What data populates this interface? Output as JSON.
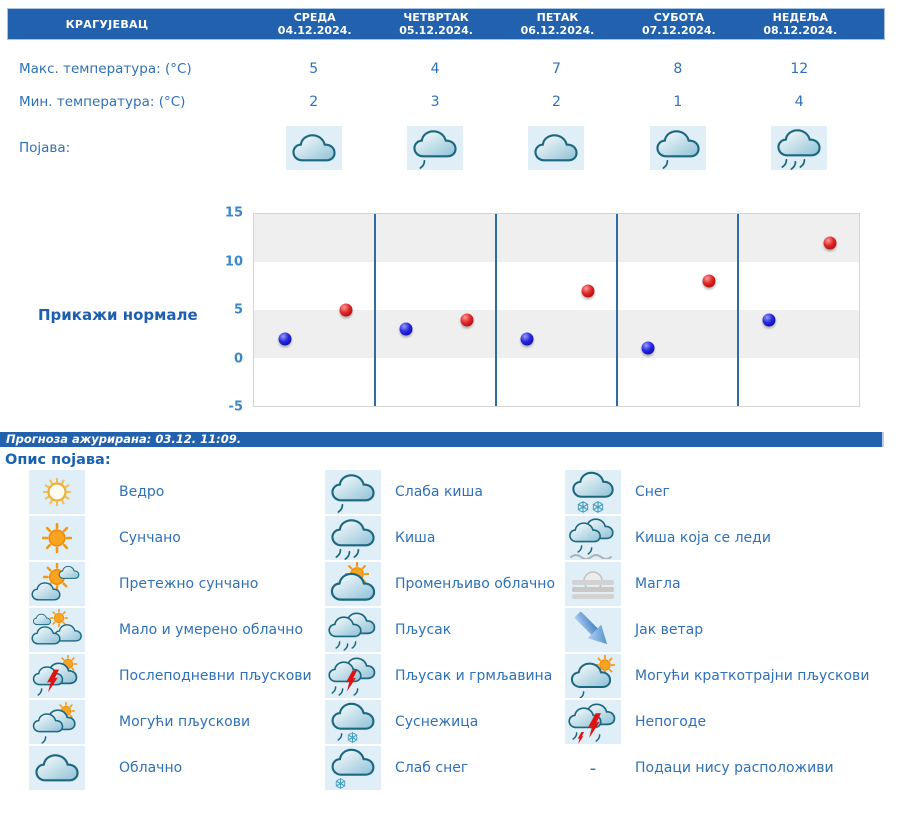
{
  "colors": {
    "header_bg": "#2161ad",
    "text_blue": "#2f71b8",
    "accent_blue": "#1a62ae",
    "cell_bg": "#e0eef8",
    "day_separator": "#2e6da4"
  },
  "header": {
    "city": "КРАГУЈЕВАЦ",
    "days": [
      {
        "name": "СРЕДА",
        "date": "04.12.2024."
      },
      {
        "name": "ЧЕТВРТАК",
        "date": "05.12.2024."
      },
      {
        "name": "ПЕТАК",
        "date": "06.12.2024."
      },
      {
        "name": "СУБОТА",
        "date": "07.12.2024."
      },
      {
        "name": "НЕДЕЉА",
        "date": "08.12.2024."
      }
    ]
  },
  "table": {
    "max_label": "Макс. температура: (°C)",
    "max_values": [
      "5",
      "4",
      "7",
      "8",
      "12"
    ],
    "min_label": "Мин. температура: (°C)",
    "min_values": [
      "2",
      "3",
      "2",
      "1",
      "4"
    ],
    "pojava_label": "Појава:",
    "pojava_icons": [
      "cloud-icon",
      "cloud-light-rain-icon",
      "cloud-icon",
      "cloud-light-rain-icon",
      "cloud-rain-icon"
    ]
  },
  "chart": {
    "show_normals_label": "Прикажи нормале"
  },
  "chart_data": {
    "type": "scatter",
    "categories": [
      "СРЕДА 04.12.2024.",
      "ЧЕТВРТАК 05.12.2024.",
      "ПЕТАК 06.12.2024.",
      "СУБОТА 07.12.2024.",
      "НЕДЕЉА 08.12.2024."
    ],
    "series": [
      {
        "name": "Мин. температура (°C)",
        "color": "#1414cc",
        "values": [
          2,
          3,
          2,
          1,
          4
        ]
      },
      {
        "name": "Макс. температура (°C)",
        "color": "#cc1212",
        "values": [
          5,
          4,
          7,
          8,
          12
        ]
      }
    ],
    "ylim": [
      -5,
      15
    ],
    "yticks": [
      15,
      10,
      5,
      0,
      -5
    ],
    "grid": "horizontal-bands-alternating",
    "legend_position": "none",
    "title": "",
    "xlabel": "",
    "ylabel": ""
  },
  "update_bar": {
    "text": "Прогноза ажурирана:  03.12. 11:09."
  },
  "legend": {
    "title": "Опис појава:",
    "columns": [
      [
        {
          "icon": "sun-outline-icon",
          "label": "Ведро"
        },
        {
          "icon": "sun-icon",
          "label": "Сунчано"
        },
        {
          "icon": "mostly-sunny-icon",
          "label": "Претежно сунчано"
        },
        {
          "icon": "partly-cloudy-icon",
          "label": "Мало и умерено облачно"
        },
        {
          "icon": "afternoon-showers-icon",
          "label": "Послеподневни пљускови"
        },
        {
          "icon": "possible-showers-icon",
          "label": "Могући пљускови"
        },
        {
          "icon": "cloud-icon",
          "label": "Облачно"
        }
      ],
      [
        {
          "icon": "cloud-light-rain-icon",
          "label": "Слаба киша"
        },
        {
          "icon": "cloud-rain-icon",
          "label": "Киша"
        },
        {
          "icon": "variable-clouds-icon",
          "label": "Променљиво облачно"
        },
        {
          "icon": "shower-icon",
          "label": "Пљусак"
        },
        {
          "icon": "thunder-shower-icon",
          "label": "Пљусак и грмљавина"
        },
        {
          "icon": "sleet-icon",
          "label": "Суснежица"
        },
        {
          "icon": "light-snow-icon",
          "label": "Слаб снег"
        }
      ],
      [
        {
          "icon": "snow-icon",
          "label": "Снег"
        },
        {
          "icon": "freezing-rain-icon",
          "label": "Киша која се леди"
        },
        {
          "icon": "fog-icon",
          "label": "Магла"
        },
        {
          "icon": "wind-icon",
          "label": "Јак ветар"
        },
        {
          "icon": "brief-showers-icon",
          "label": "Могући краткотрајни пљускови"
        },
        {
          "icon": "storm-icon",
          "label": "Непогоде"
        },
        {
          "icon": "dash-icon",
          "label": "Подаци нису расположиви"
        }
      ]
    ]
  }
}
